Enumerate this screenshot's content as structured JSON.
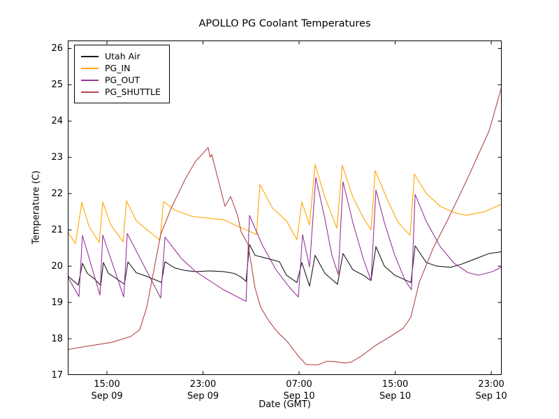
{
  "chart_data": {
    "type": "line",
    "title": "APOLLO PG Coolant Temperatures",
    "xlabel": "Date (GMT)",
    "ylabel": "Temperature (C)",
    "x_unit": "hours since Sep 09 00:00 GMT",
    "xlim": [
      11.74,
      47.87
    ],
    "ylim": [
      17,
      26.22
    ],
    "grid": false,
    "legend_position": "upper left",
    "y_ticks": [
      17,
      18,
      19,
      20,
      21,
      22,
      23,
      24,
      25,
      26
    ],
    "x_ticks": [
      {
        "value": 15,
        "line1": "15:00",
        "line2": "Sep 09"
      },
      {
        "value": 23,
        "line1": "23:00",
        "line2": "Sep 09"
      },
      {
        "value": 31,
        "line1": "07:00",
        "line2": "Sep 10"
      },
      {
        "value": 39,
        "line1": "15:00",
        "line2": "Sep 10"
      },
      {
        "value": 47,
        "line1": "23:00",
        "line2": "Sep 10"
      }
    ],
    "series": [
      {
        "name": "Utah Air",
        "color": "#1a1a1a",
        "points": [
          [
            11.74,
            19.73
          ],
          [
            12.2,
            19.6
          ],
          [
            12.61,
            19.48
          ],
          [
            12.96,
            20.08
          ],
          [
            13.37,
            19.8
          ],
          [
            13.95,
            19.65
          ],
          [
            14.48,
            19.47
          ],
          [
            14.71,
            20.1
          ],
          [
            15.12,
            19.8
          ],
          [
            15.7,
            19.68
          ],
          [
            16.45,
            19.5
          ],
          [
            16.75,
            20.12
          ],
          [
            17.44,
            19.82
          ],
          [
            18.32,
            19.72
          ],
          [
            19.19,
            19.6
          ],
          [
            19.54,
            19.55
          ],
          [
            19.83,
            20.12
          ],
          [
            20.64,
            19.95
          ],
          [
            21.52,
            19.88
          ],
          [
            22.39,
            19.85
          ],
          [
            23.55,
            19.87
          ],
          [
            24.71,
            19.85
          ],
          [
            25.59,
            19.8
          ],
          [
            26.17,
            19.7
          ],
          [
            26.58,
            19.58
          ],
          [
            26.87,
            20.6
          ],
          [
            27.33,
            20.3
          ],
          [
            28.5,
            20.2
          ],
          [
            29.37,
            20.12
          ],
          [
            29.95,
            19.75
          ],
          [
            30.82,
            19.55
          ],
          [
            31.23,
            20.1
          ],
          [
            31.87,
            19.45
          ],
          [
            32.33,
            20.3
          ],
          [
            33.15,
            19.8
          ],
          [
            34.2,
            19.5
          ],
          [
            34.66,
            20.35
          ],
          [
            35.48,
            19.9
          ],
          [
            36.35,
            19.75
          ],
          [
            36.99,
            19.6
          ],
          [
            37.4,
            20.54
          ],
          [
            38.1,
            20.0
          ],
          [
            38.97,
            19.75
          ],
          [
            40.31,
            19.55
          ],
          [
            40.66,
            20.56
          ],
          [
            41.59,
            20.1
          ],
          [
            42.46,
            20.0
          ],
          [
            43.62,
            19.97
          ],
          [
            44.49,
            20.05
          ],
          [
            45.66,
            20.2
          ],
          [
            46.82,
            20.35
          ],
          [
            47.87,
            20.4
          ]
        ]
      },
      {
        "name": "PG_IN",
        "color": "#ffa500",
        "points": [
          [
            11.74,
            20.95
          ],
          [
            12.38,
            20.62
          ],
          [
            12.91,
            21.76
          ],
          [
            13.5,
            21.1
          ],
          [
            14.36,
            20.65
          ],
          [
            14.65,
            21.77
          ],
          [
            15.3,
            21.15
          ],
          [
            16.34,
            20.67
          ],
          [
            16.63,
            21.8
          ],
          [
            17.44,
            21.25
          ],
          [
            18.9,
            20.85
          ],
          [
            19.42,
            20.72
          ],
          [
            19.71,
            21.78
          ],
          [
            20.64,
            21.55
          ],
          [
            22.1,
            21.37
          ],
          [
            23.55,
            21.32
          ],
          [
            24.71,
            21.28
          ],
          [
            25.88,
            21.1
          ],
          [
            26.75,
            20.98
          ],
          [
            27.45,
            20.87
          ],
          [
            27.74,
            22.25
          ],
          [
            28.79,
            21.6
          ],
          [
            29.95,
            21.25
          ],
          [
            30.82,
            20.73
          ],
          [
            31.23,
            21.77
          ],
          [
            31.87,
            21.13
          ],
          [
            32.33,
            22.8
          ],
          [
            33.15,
            21.9
          ],
          [
            34.14,
            21.05
          ],
          [
            34.6,
            22.78
          ],
          [
            35.48,
            21.9
          ],
          [
            36.35,
            21.33
          ],
          [
            36.99,
            21.0
          ],
          [
            37.34,
            22.63
          ],
          [
            38.39,
            21.8
          ],
          [
            39.26,
            21.2
          ],
          [
            40.25,
            20.85
          ],
          [
            40.6,
            22.54
          ],
          [
            41.59,
            22.0
          ],
          [
            42.75,
            21.65
          ],
          [
            43.91,
            21.48
          ],
          [
            44.9,
            21.4
          ],
          [
            46.41,
            21.5
          ],
          [
            47.87,
            21.71
          ]
        ]
      },
      {
        "name": "PG_OUT",
        "color": "#993399",
        "points": [
          [
            11.74,
            19.7
          ],
          [
            12.67,
            19.16
          ],
          [
            12.96,
            20.85
          ],
          [
            14.42,
            19.2
          ],
          [
            14.65,
            20.86
          ],
          [
            16.4,
            19.15
          ],
          [
            16.69,
            20.9
          ],
          [
            19.48,
            19.12
          ],
          [
            19.83,
            20.8
          ],
          [
            21.23,
            20.2
          ],
          [
            22.39,
            19.85
          ],
          [
            23.55,
            19.6
          ],
          [
            24.71,
            19.35
          ],
          [
            25.88,
            19.15
          ],
          [
            26.58,
            19.03
          ],
          [
            26.87,
            21.4
          ],
          [
            27.91,
            20.6
          ],
          [
            29.08,
            19.9
          ],
          [
            30.24,
            19.4
          ],
          [
            30.94,
            19.15
          ],
          [
            31.29,
            20.87
          ],
          [
            31.87,
            19.98
          ],
          [
            32.39,
            22.45
          ],
          [
            33.15,
            21.3
          ],
          [
            33.73,
            20.3
          ],
          [
            34.26,
            19.77
          ],
          [
            34.66,
            22.33
          ],
          [
            35.48,
            21.2
          ],
          [
            36.35,
            20.2
          ],
          [
            36.99,
            19.6
          ],
          [
            37.4,
            22.1
          ],
          [
            38.1,
            21.2
          ],
          [
            38.97,
            20.3
          ],
          [
            39.84,
            19.6
          ],
          [
            40.36,
            19.35
          ],
          [
            40.66,
            21.98
          ],
          [
            41.59,
            21.23
          ],
          [
            42.75,
            20.54
          ],
          [
            43.91,
            20.08
          ],
          [
            45.08,
            19.82
          ],
          [
            45.95,
            19.75
          ],
          [
            47.12,
            19.85
          ],
          [
            47.87,
            19.98
          ]
        ]
      },
      {
        "name": "PG_SHUTTLE",
        "color": "#b54545",
        "points": [
          [
            11.74,
            17.7
          ],
          [
            13.08,
            17.78
          ],
          [
            15.4,
            17.9
          ],
          [
            16.98,
            18.06
          ],
          [
            17.73,
            18.25
          ],
          [
            18.32,
            18.87
          ],
          [
            19.48,
            20.88
          ],
          [
            20.35,
            21.6
          ],
          [
            21.52,
            22.4
          ],
          [
            22.39,
            22.9
          ],
          [
            22.97,
            23.1
          ],
          [
            23.43,
            23.27
          ],
          [
            23.6,
            23.0
          ],
          [
            23.73,
            23.08
          ],
          [
            24.13,
            22.55
          ],
          [
            24.83,
            21.65
          ],
          [
            25.3,
            21.92
          ],
          [
            25.88,
            21.4
          ],
          [
            26.17,
            20.95
          ],
          [
            26.75,
            20.6
          ],
          [
            27.33,
            19.4
          ],
          [
            27.8,
            18.87
          ],
          [
            28.5,
            18.48
          ],
          [
            29.19,
            18.19
          ],
          [
            30.07,
            17.9
          ],
          [
            30.94,
            17.52
          ],
          [
            31.58,
            17.29
          ],
          [
            32.57,
            17.28
          ],
          [
            33.32,
            17.38
          ],
          [
            34.02,
            17.37
          ],
          [
            34.78,
            17.33
          ],
          [
            35.36,
            17.36
          ],
          [
            36.18,
            17.52
          ],
          [
            37.34,
            17.81
          ],
          [
            38.5,
            18.04
          ],
          [
            39.67,
            18.29
          ],
          [
            40.31,
            18.6
          ],
          [
            41.0,
            19.55
          ],
          [
            42.17,
            20.5
          ],
          [
            43.33,
            21.25
          ],
          [
            44.9,
            22.33
          ],
          [
            46.82,
            23.73
          ],
          [
            47.87,
            24.95
          ]
        ]
      }
    ]
  }
}
